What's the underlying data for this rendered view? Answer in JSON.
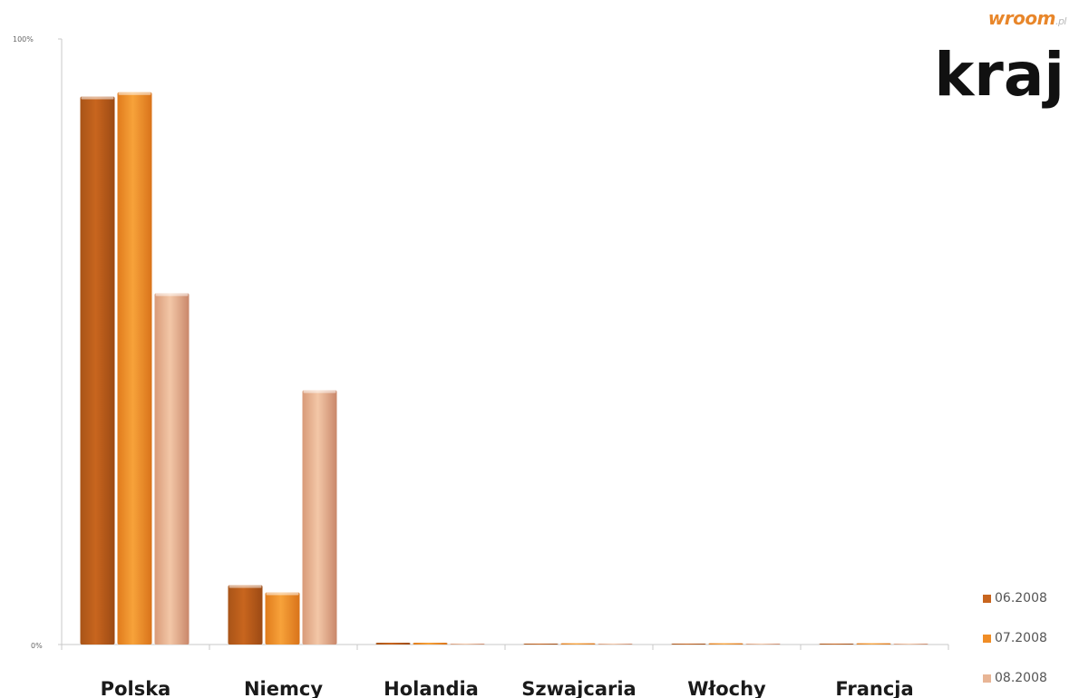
{
  "logo": {
    "text": "wroom",
    "suffix": ".pl"
  },
  "title": "kraj",
  "chart_data": {
    "type": "bar",
    "categories": [
      "Polska",
      "Niemcy",
      "Holandia",
      "Szwajcaria",
      "Włochy",
      "Francja"
    ],
    "series": [
      {
        "name": "06.2008",
        "color": "#c8651e",
        "values": [
          90.5,
          9.8,
          0.3,
          0.1,
          0.1,
          0.1
        ]
      },
      {
        "name": "07.2008",
        "color": "#f08d26",
        "values": [
          91.2,
          8.6,
          0.3,
          0.2,
          0.2,
          0.2
        ]
      },
      {
        "name": "08.2008",
        "color": "#e8b595",
        "values": [
          58.0,
          42.0,
          0.1,
          0.1,
          0.1,
          0.1
        ]
      }
    ],
    "yticks": [
      "0%",
      "100%"
    ],
    "ylim": [
      0,
      100
    ],
    "legend_position": "bottom-right",
    "grid": false
  }
}
